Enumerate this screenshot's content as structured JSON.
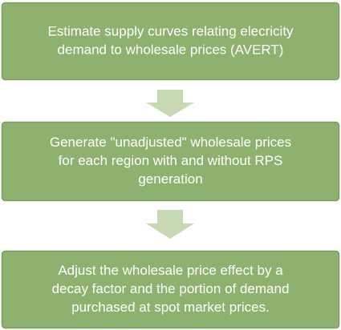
{
  "nodes": [
    {
      "lines": [
        "Estimate supply curves relating elecricity",
        "demand to wholesale prices (AVERT)"
      ]
    },
    {
      "lines": [
        "Generate \"unadjusted\" wholesale prices",
        "for each region with and without RPS",
        "generation"
      ]
    },
    {
      "lines": [
        "Adjust the wholesale price effect by a",
        "decay factor and the portion of demand",
        "purchased at spot market prices."
      ]
    }
  ]
}
